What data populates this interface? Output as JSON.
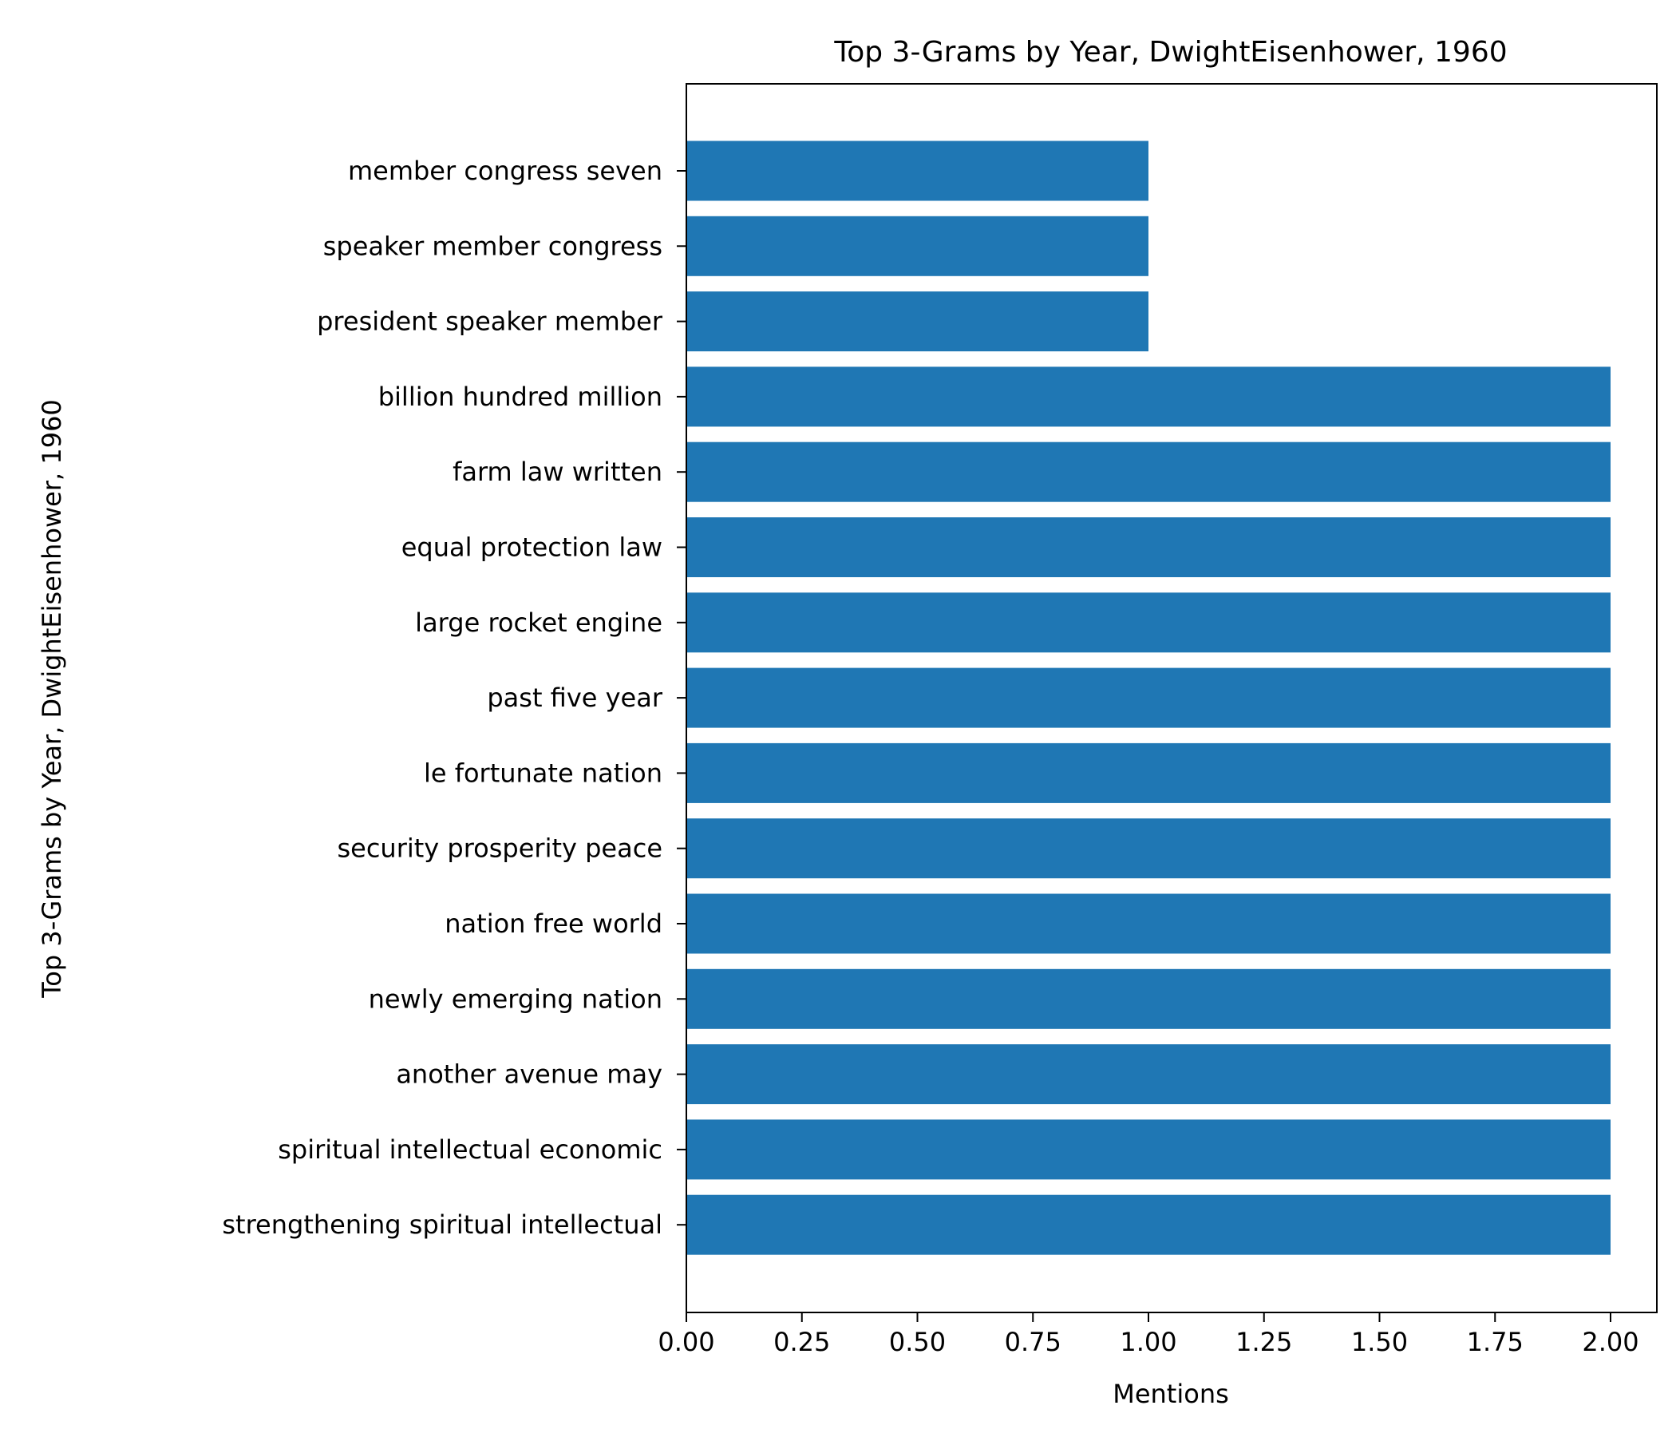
{
  "chart_data": {
    "type": "bar",
    "orientation": "horizontal",
    "title": "Top 3-Grams by Year, DwightEisenhower, 1960",
    "xlabel": "Mentions",
    "ylabel": "Top 3-Grams by Year, DwightEisenhower, 1960",
    "xlim": [
      0,
      2.1
    ],
    "xticks": [
      "0.00",
      "0.25",
      "0.50",
      "0.75",
      "1.00",
      "1.25",
      "1.50",
      "1.75",
      "2.00"
    ],
    "grid": false,
    "bar_color": "#1f77b4",
    "categories": [
      "member congress seven",
      "speaker member congress",
      "president speaker member",
      "billion hundred million",
      "farm law written",
      "equal protection law",
      "large rocket engine",
      "past five year",
      "le fortunate nation",
      "security prosperity peace",
      "nation free world",
      "newly emerging nation",
      "another avenue may",
      "spiritual intellectual economic",
      "strengthening spiritual intellectual"
    ],
    "values": [
      1,
      1,
      1,
      2,
      2,
      2,
      2,
      2,
      2,
      2,
      2,
      2,
      2,
      2,
      2
    ]
  }
}
